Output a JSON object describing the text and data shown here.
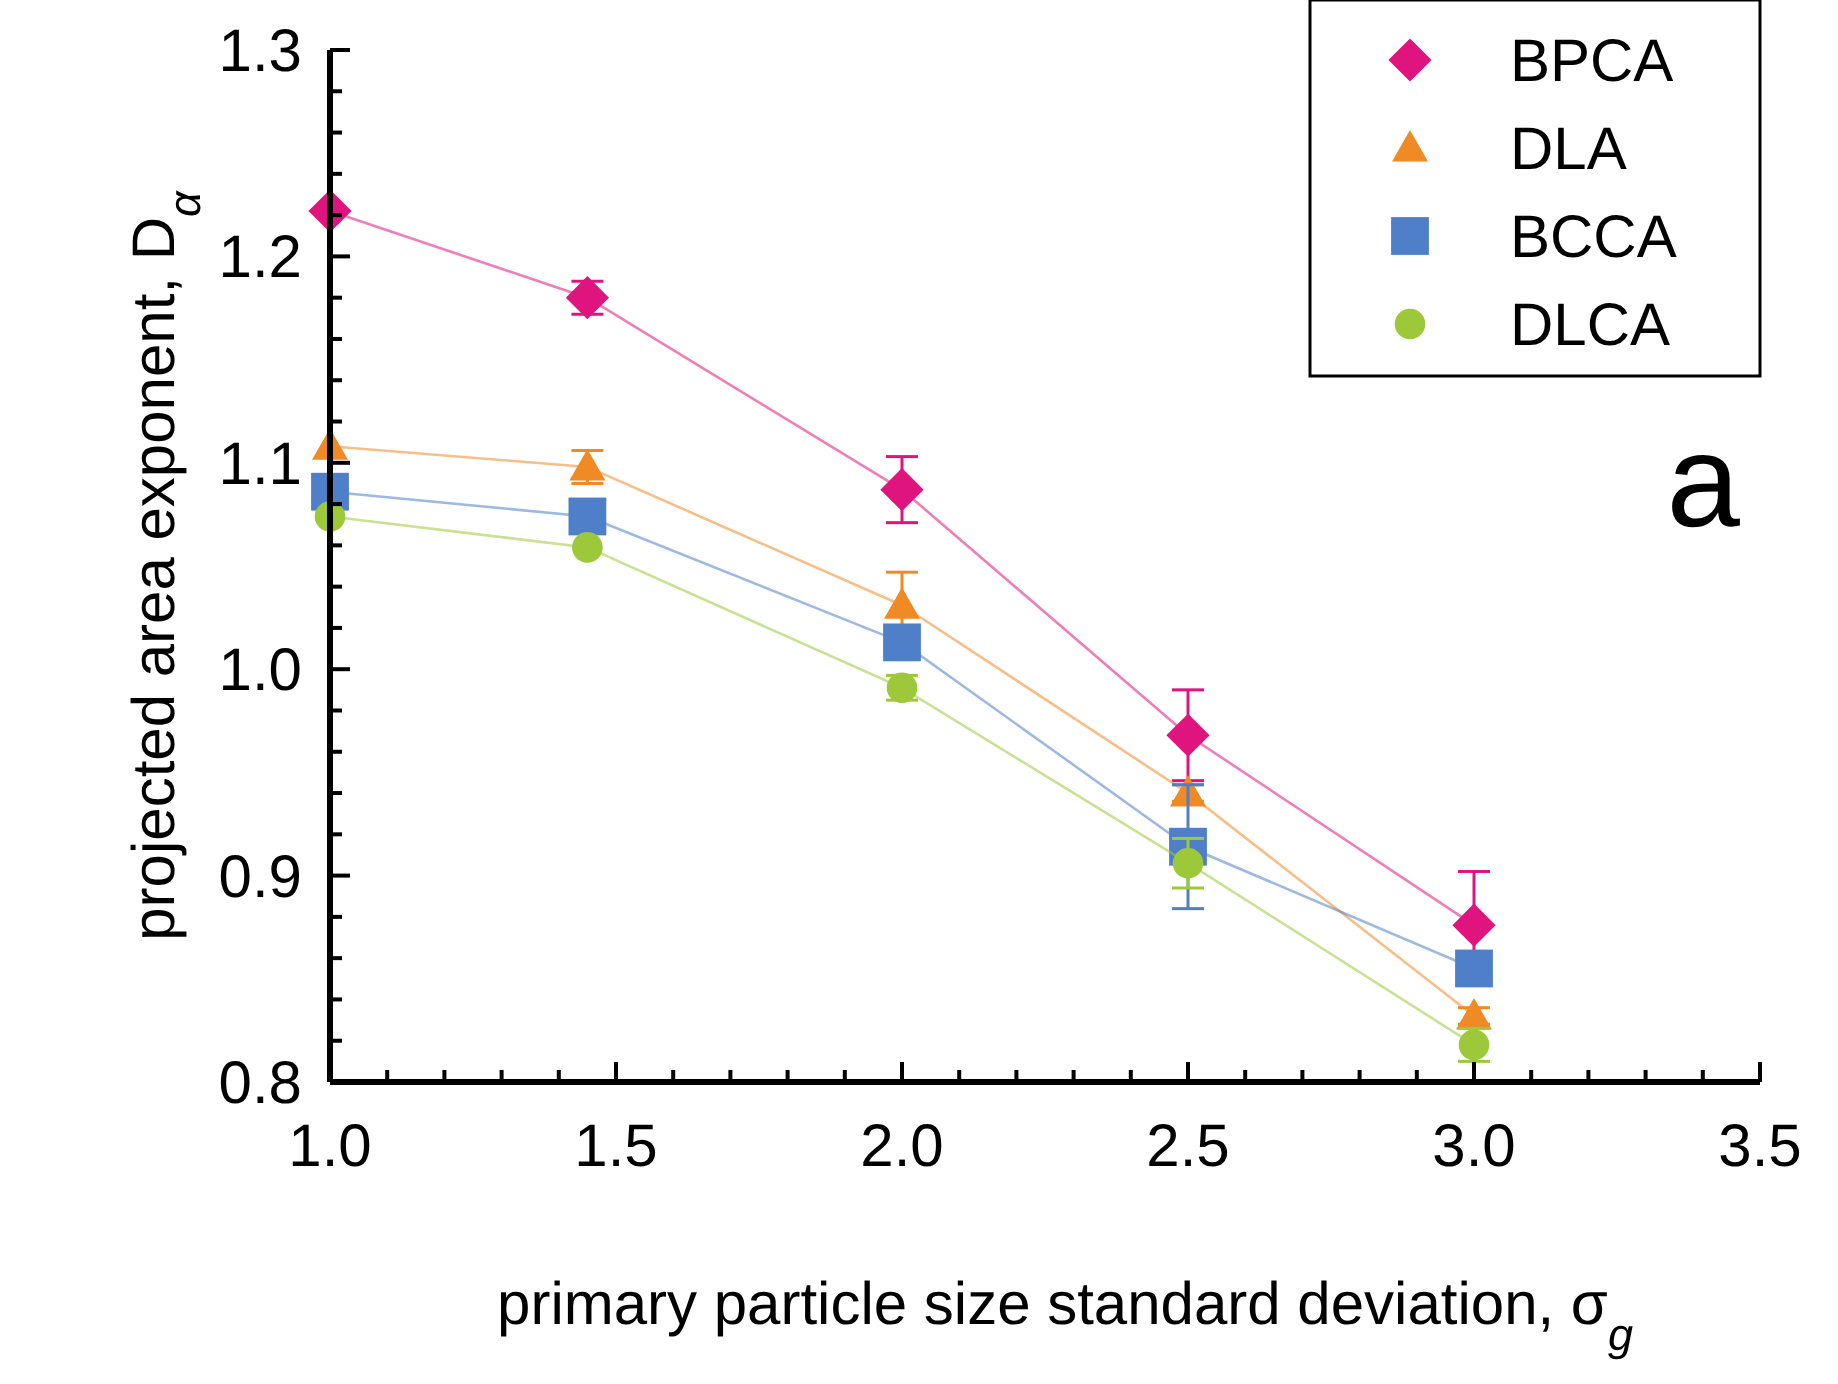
{
  "chart_data": {
    "type": "line",
    "xlabel": "primary particle size standard deviation, σ$_{g}$",
    "ylabel": "projected area exponent, D$_{α}$",
    "x": [
      1.0,
      1.45,
      2.0,
      2.5,
      3.0
    ],
    "series": [
      {
        "name": "BPCA",
        "color": "#e0147f",
        "marker": "diamond",
        "values": [
          1.222,
          1.18,
          1.087,
          0.968,
          0.876
        ],
        "errors": [
          null,
          0.008,
          0.016,
          0.022,
          0.026
        ]
      },
      {
        "name": "DLA",
        "color": "#f08a24",
        "marker": "triangle",
        "values": [
          1.108,
          1.098,
          1.031,
          0.94,
          0.832
        ],
        "errors": [
          null,
          0.008,
          0.016,
          0.004,
          0.004
        ]
      },
      {
        "name": "BCCA",
        "color": "#4f7fc8",
        "marker": "square",
        "values": [
          1.086,
          1.074,
          1.013,
          0.914,
          0.855
        ],
        "errors": [
          null,
          0.008,
          null,
          0.03,
          null
        ]
      },
      {
        "name": "DLCA",
        "color": "#9cc83a",
        "marker": "circle",
        "values": [
          1.074,
          1.059,
          0.991,
          0.906,
          0.818
        ],
        "errors": [
          null,
          null,
          0.006,
          0.012,
          0.008
        ]
      }
    ],
    "xlim": [
      1.0,
      3.5
    ],
    "ylim": [
      0.8,
      1.3
    ],
    "xticks": [
      {
        "value": 1,
        "label": "1.0"
      },
      {
        "value": 1.1,
        "label": null
      },
      {
        "value": 1.2,
        "label": null
      },
      {
        "value": 1.3,
        "label": null
      },
      {
        "value": 1.4,
        "label": null
      },
      {
        "value": 1.5,
        "label": "1.5"
      },
      {
        "value": 1.6,
        "label": null
      },
      {
        "value": 1.7,
        "label": null
      },
      {
        "value": 1.8,
        "label": null
      },
      {
        "value": 1.9,
        "label": null
      },
      {
        "value": 2,
        "label": "2.0"
      },
      {
        "value": 2.1,
        "label": null
      },
      {
        "value": 2.2,
        "label": null
      },
      {
        "value": 2.3,
        "label": null
      },
      {
        "value": 2.4,
        "label": null
      },
      {
        "value": 2.5,
        "label": "2.5"
      },
      {
        "value": 2.6,
        "label": null
      },
      {
        "value": 2.7,
        "label": null
      },
      {
        "value": 2.8,
        "label": null
      },
      {
        "value": 2.9,
        "label": null
      },
      {
        "value": 3,
        "label": "3.0"
      },
      {
        "value": 3.1,
        "label": null
      },
      {
        "value": 3.2,
        "label": null
      },
      {
        "value": 3.3,
        "label": null
      },
      {
        "value": 3.4,
        "label": null
      },
      {
        "value": 3.5,
        "label": "3.5"
      }
    ],
    "yticks": [
      {
        "value": 0.8,
        "label": "0.8"
      },
      {
        "value": 0.82,
        "label": null
      },
      {
        "value": 0.84,
        "label": null
      },
      {
        "value": 0.86,
        "label": null
      },
      {
        "value": 0.88,
        "label": null
      },
      {
        "value": 0.9,
        "label": "0.9"
      },
      {
        "value": 0.92,
        "label": null
      },
      {
        "value": 0.94,
        "label": null
      },
      {
        "value": 0.96,
        "label": null
      },
      {
        "value": 0.98,
        "label": null
      },
      {
        "value": 1.0,
        "label": "1.0"
      },
      {
        "value": 1.02,
        "label": null
      },
      {
        "value": 1.04,
        "label": null
      },
      {
        "value": 1.06,
        "label": null
      },
      {
        "value": 1.08,
        "label": null
      },
      {
        "value": 1.1,
        "label": "1.1"
      },
      {
        "value": 1.12,
        "label": null
      },
      {
        "value": 1.14,
        "label": null
      },
      {
        "value": 1.16,
        "label": null
      },
      {
        "value": 1.18,
        "label": null
      },
      {
        "value": 1.2,
        "label": "1.2"
      },
      {
        "value": 1.22,
        "label": null
      },
      {
        "value": 1.24,
        "label": null
      },
      {
        "value": 1.26,
        "label": null
      },
      {
        "value": 1.28,
        "label": null
      },
      {
        "value": 1.3,
        "label": "1.3"
      }
    ],
    "legend": "top right",
    "annotations": [
      "a"
    ]
  }
}
